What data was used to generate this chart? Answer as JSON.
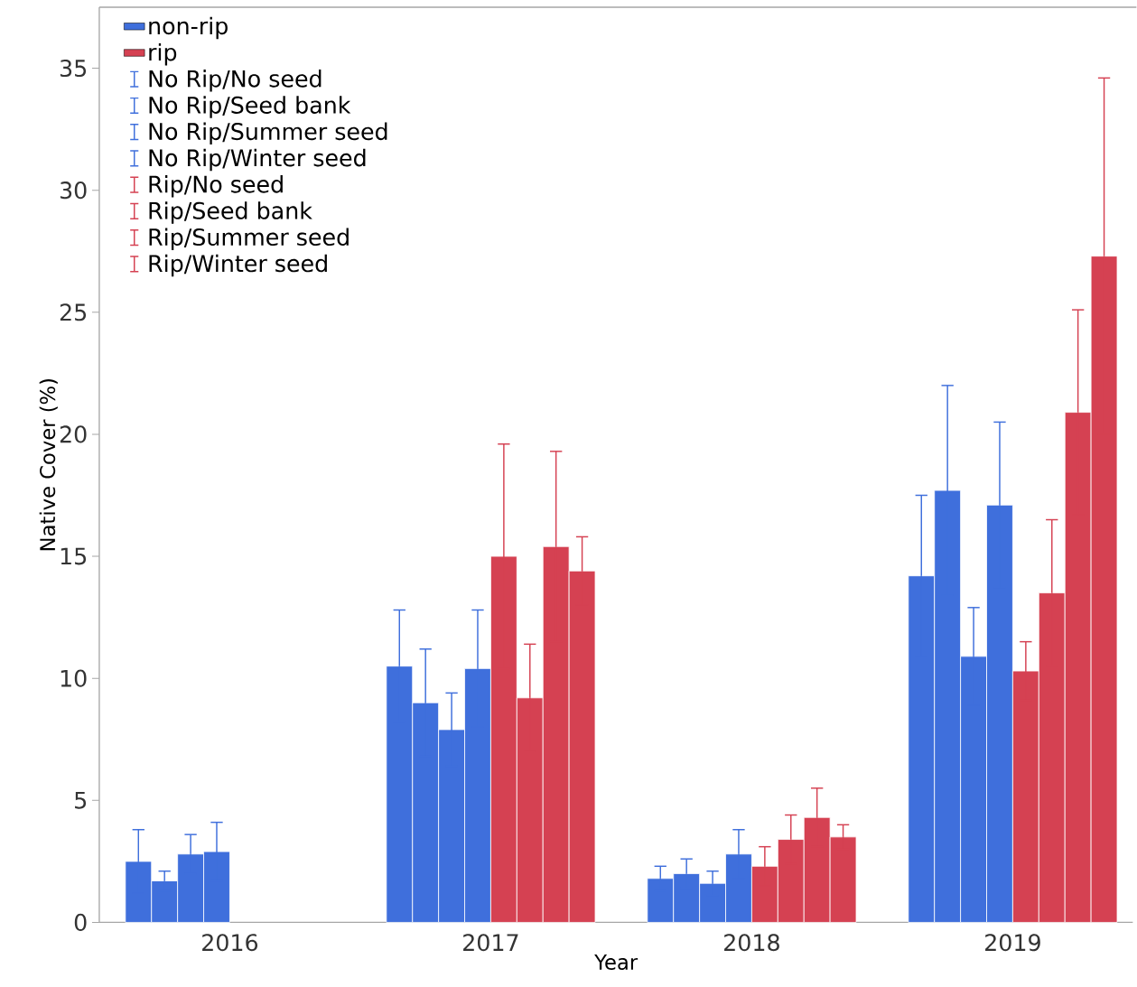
{
  "chart_data": {
    "type": "bar",
    "xlabel": "Year",
    "ylabel": "Native Cover (%)",
    "categories": [
      "2016",
      "2017",
      "2018",
      "2019"
    ],
    "ylim": [
      0,
      37.5
    ],
    "yticks": [
      0,
      5,
      10,
      15,
      20,
      25,
      30,
      35
    ],
    "legend": "top left",
    "series": [
      {
        "name": "non-rip",
        "color": "#3f6fdc",
        "values": [
          null,
          null,
          null,
          null
        ]
      },
      {
        "name": "rip",
        "color": "#d54152",
        "values": [
          null,
          null,
          null,
          null
        ]
      },
      {
        "name": "No Rip/No seed",
        "color": "#3f6fdc",
        "values": [
          2.5,
          10.5,
          1.8,
          14.2
        ],
        "errors": [
          1.3,
          2.3,
          0.5,
          3.3
        ]
      },
      {
        "name": "No Rip/Seed bank",
        "color": "#3f6fdc",
        "values": [
          1.7,
          9.0,
          2.0,
          17.7
        ],
        "errors": [
          0.4,
          2.2,
          0.6,
          4.3
        ]
      },
      {
        "name": "No Rip/Summer seed",
        "color": "#3f6fdc",
        "values": [
          2.8,
          7.9,
          1.6,
          10.9
        ],
        "errors": [
          0.8,
          1.5,
          0.5,
          2.0
        ]
      },
      {
        "name": "No Rip/Winter seed",
        "color": "#3f6fdc",
        "values": [
          2.9,
          10.4,
          2.8,
          17.1
        ],
        "errors": [
          1.2,
          2.4,
          1.0,
          3.4
        ]
      },
      {
        "name": "Rip/No seed",
        "color": "#d54152",
        "values": [
          null,
          15.0,
          2.3,
          10.3
        ],
        "errors": [
          null,
          4.6,
          0.8,
          1.2
        ]
      },
      {
        "name": "Rip/Seed bank",
        "color": "#d54152",
        "values": [
          null,
          9.2,
          3.4,
          13.5
        ],
        "errors": [
          null,
          2.2,
          1.0,
          3.0
        ]
      },
      {
        "name": "Rip/Summer seed",
        "color": "#d54152",
        "values": [
          null,
          15.4,
          4.3,
          20.9
        ],
        "errors": [
          null,
          3.9,
          1.2,
          4.2
        ]
      },
      {
        "name": "Rip/Winter seed",
        "color": "#d54152",
        "values": [
          null,
          14.4,
          3.5,
          27.3
        ],
        "errors": [
          null,
          1.4,
          0.5,
          7.3
        ]
      }
    ]
  }
}
